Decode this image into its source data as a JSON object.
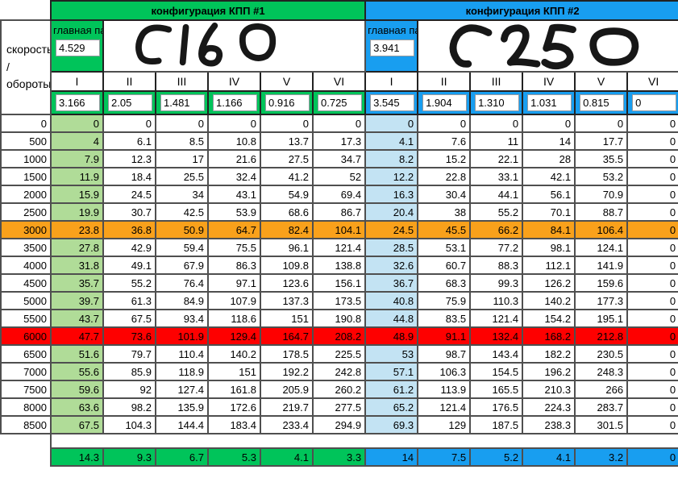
{
  "corner_label": "скорость\n/\nобороты",
  "config1": {
    "title": "конфигурация КПП #1",
    "main_pair_label": "главная\nпара",
    "main_pair_value": "4.529",
    "handwritten_note": "C160",
    "gears": [
      "I",
      "II",
      "III",
      "IV",
      "V",
      "VI"
    ],
    "ratios": [
      "3.166",
      "2.05",
      "1.481",
      "1.166",
      "0.916",
      "0.725"
    ],
    "summary": [
      "14.3",
      "9.3",
      "6.7",
      "5.3",
      "4.1",
      "3.3"
    ]
  },
  "config2": {
    "title": "конфигурация КПП #2",
    "main_pair_label": "главная\nпара",
    "main_pair_value": "3.941",
    "handwritten_note": "C250",
    "gears": [
      "I",
      "II",
      "III",
      "IV",
      "V",
      "VI"
    ],
    "ratios": [
      "3.545",
      "1.904",
      "1.310",
      "1.031",
      "0.815",
      "0"
    ],
    "summary": [
      "14",
      "7.5",
      "5.2",
      "4.1",
      "3.2",
      "0"
    ]
  },
  "rows": [
    {
      "rpm": "0",
      "c1": [
        "0",
        "0",
        "0",
        "0",
        "0",
        "0"
      ],
      "c2": [
        "0",
        "0",
        "0",
        "0",
        "0",
        "0"
      ],
      "highlight": ""
    },
    {
      "rpm": "500",
      "c1": [
        "4",
        "6.1",
        "8.5",
        "10.8",
        "13.7",
        "17.3"
      ],
      "c2": [
        "4.1",
        "7.6",
        "11",
        "14",
        "17.7",
        "0"
      ],
      "highlight": ""
    },
    {
      "rpm": "1000",
      "c1": [
        "7.9",
        "12.3",
        "17",
        "21.6",
        "27.5",
        "34.7"
      ],
      "c2": [
        "8.2",
        "15.2",
        "22.1",
        "28",
        "35.5",
        "0"
      ],
      "highlight": ""
    },
    {
      "rpm": "1500",
      "c1": [
        "11.9",
        "18.4",
        "25.5",
        "32.4",
        "41.2",
        "52"
      ],
      "c2": [
        "12.2",
        "22.8",
        "33.1",
        "42.1",
        "53.2",
        "0"
      ],
      "highlight": ""
    },
    {
      "rpm": "2000",
      "c1": [
        "15.9",
        "24.5",
        "34",
        "43.1",
        "54.9",
        "69.4"
      ],
      "c2": [
        "16.3",
        "30.4",
        "44.1",
        "56.1",
        "70.9",
        "0"
      ],
      "highlight": ""
    },
    {
      "rpm": "2500",
      "c1": [
        "19.9",
        "30.7",
        "42.5",
        "53.9",
        "68.6",
        "86.7"
      ],
      "c2": [
        "20.4",
        "38",
        "55.2",
        "70.1",
        "88.7",
        "0"
      ],
      "highlight": ""
    },
    {
      "rpm": "3000",
      "c1": [
        "23.8",
        "36.8",
        "50.9",
        "64.7",
        "82.4",
        "104.1"
      ],
      "c2": [
        "24.5",
        "45.5",
        "66.2",
        "84.1",
        "106.4",
        "0"
      ],
      "highlight": "orange"
    },
    {
      "rpm": "3500",
      "c1": [
        "27.8",
        "42.9",
        "59.4",
        "75.5",
        "96.1",
        "121.4"
      ],
      "c2": [
        "28.5",
        "53.1",
        "77.2",
        "98.1",
        "124.1",
        "0"
      ],
      "highlight": ""
    },
    {
      "rpm": "4000",
      "c1": [
        "31.8",
        "49.1",
        "67.9",
        "86.3",
        "109.8",
        "138.8"
      ],
      "c2": [
        "32.6",
        "60.7",
        "88.3",
        "112.1",
        "141.9",
        "0"
      ],
      "highlight": ""
    },
    {
      "rpm": "4500",
      "c1": [
        "35.7",
        "55.2",
        "76.4",
        "97.1",
        "123.6",
        "156.1"
      ],
      "c2": [
        "36.7",
        "68.3",
        "99.3",
        "126.2",
        "159.6",
        "0"
      ],
      "highlight": ""
    },
    {
      "rpm": "5000",
      "c1": [
        "39.7",
        "61.3",
        "84.9",
        "107.9",
        "137.3",
        "173.5"
      ],
      "c2": [
        "40.8",
        "75.9",
        "110.3",
        "140.2",
        "177.3",
        "0"
      ],
      "highlight": ""
    },
    {
      "rpm": "5500",
      "c1": [
        "43.7",
        "67.5",
        "93.4",
        "118.6",
        "151",
        "190.8"
      ],
      "c2": [
        "44.8",
        "83.5",
        "121.4",
        "154.2",
        "195.1",
        "0"
      ],
      "highlight": ""
    },
    {
      "rpm": "6000",
      "c1": [
        "47.7",
        "73.6",
        "101.9",
        "129.4",
        "164.7",
        "208.2"
      ],
      "c2": [
        "48.9",
        "91.1",
        "132.4",
        "168.2",
        "212.8",
        "0"
      ],
      "highlight": "red"
    },
    {
      "rpm": "6500",
      "c1": [
        "51.6",
        "79.7",
        "110.4",
        "140.2",
        "178.5",
        "225.5"
      ],
      "c2": [
        "53",
        "98.7",
        "143.4",
        "182.2",
        "230.5",
        "0"
      ],
      "highlight": ""
    },
    {
      "rpm": "7000",
      "c1": [
        "55.6",
        "85.9",
        "118.9",
        "151",
        "192.2",
        "242.8"
      ],
      "c2": [
        "57.1",
        "106.3",
        "154.5",
        "196.2",
        "248.3",
        "0"
      ],
      "highlight": ""
    },
    {
      "rpm": "7500",
      "c1": [
        "59.6",
        "92",
        "127.4",
        "161.8",
        "205.9",
        "260.2"
      ],
      "c2": [
        "61.2",
        "113.9",
        "165.5",
        "210.3",
        "266",
        "0"
      ],
      "highlight": ""
    },
    {
      "rpm": "8000",
      "c1": [
        "63.6",
        "98.2",
        "135.9",
        "172.6",
        "219.7",
        "277.5"
      ],
      "c2": [
        "65.2",
        "121.4",
        "176.5",
        "224.3",
        "283.7",
        "0"
      ],
      "highlight": ""
    },
    {
      "rpm": "8500",
      "c1": [
        "67.5",
        "104.3",
        "144.4",
        "183.4",
        "233.4",
        "294.9"
      ],
      "c2": [
        "69.3",
        "129",
        "187.5",
        "238.3",
        "301.5",
        "0"
      ],
      "highlight": ""
    }
  ],
  "colors": {
    "config1_accent": "#00C45A",
    "config2_accent": "#189EF0",
    "config1_gear1_column": "#B0DC98",
    "config2_gear1_column": "#C3E3F3",
    "highlight_3000_rpm": "#F9A11B",
    "highlight_6000_rpm": "#FE0000"
  }
}
